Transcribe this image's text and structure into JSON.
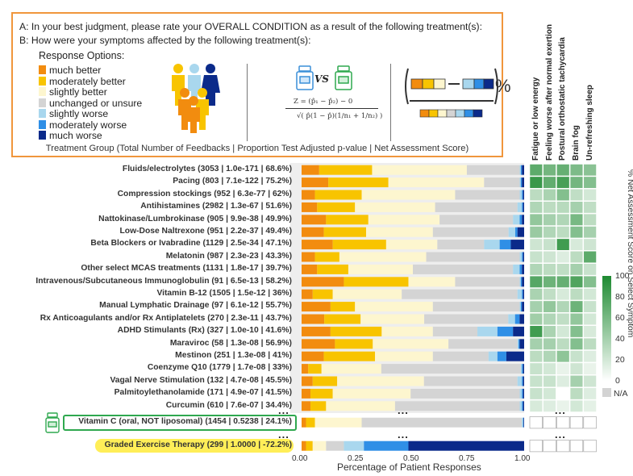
{
  "legend": {
    "question_a": "A: In your best judgment, please rate your OVERALL CONDITION as a result of the following treatment(s):",
    "question_b": "B: How were your symptoms affected by the following treatment(s):",
    "response_title": "Response Options:",
    "options": [
      {
        "label": "much better",
        "color": "#f28c0f"
      },
      {
        "label": "moderately better",
        "color": "#f8c400"
      },
      {
        "label": "slightly better",
        "color": "#fdf6cf"
      },
      {
        "label": "unchanged or unsure",
        "color": "#d4d4d4"
      },
      {
        "label": "slightly worse",
        "color": "#a9d7ee"
      },
      {
        "label": "moderately worse",
        "color": "#2f8fe6"
      },
      {
        "label": "much worse",
        "color": "#0b2a8a"
      }
    ],
    "formula_vs": "VS",
    "formula_z": "Z = (p̂₁ − p̂₂) − 0",
    "formula_den": "√( p̂(1 − p̂)(1/n₁ + 1/n₂) )",
    "net_percent": "%",
    "caption": "Treatment Group (Total Number of Feedbacks | Proportion Test Adjusted p-value | Net Assessment Score)"
  },
  "chart_data": {
    "type": "bar",
    "stacked": true,
    "orientation": "horizontal",
    "xlabel": "Percentage of Patient Responses",
    "xlim": [
      0,
      1
    ],
    "xticks": [
      "0.00",
      "0.25",
      "0.50",
      "0.75",
      "1.00"
    ],
    "response_categories": [
      "much better",
      "moderately better",
      "slightly better",
      "unchanged or unsure",
      "slightly worse",
      "moderately worse",
      "much worse"
    ],
    "rows": [
      {
        "label": "Fluids/electrolytes (3053 | 1.0e-171 | 68.6%)",
        "values": [
          0.08,
          0.24,
          0.43,
          0.24,
          0.005,
          0.005,
          0.01
        ],
        "heat": [
          72,
          62,
          68,
          58,
          52
        ]
      },
      {
        "label": "Pacing (803 | 7.1e-122 | 75.2%)",
        "values": [
          0.12,
          0.27,
          0.43,
          0.16,
          0.005,
          0.005,
          0.01
        ],
        "heat": [
          88,
          70,
          82,
          62,
          55
        ]
      },
      {
        "label": "Compression stockings (952 | 6.3e-77 | 62%)",
        "values": [
          0.06,
          0.21,
          0.42,
          0.29,
          0.01,
          0.005,
          0.005
        ],
        "heat": [
          30,
          38,
          55,
          28,
          20
        ]
      },
      {
        "label": "Antihistamines (2982 | 1.3e-67 | 51.6%)",
        "values": [
          0.07,
          0.17,
          0.36,
          0.37,
          0.02,
          0.005,
          0.005
        ],
        "heat": [
          35,
          30,
          32,
          40,
          28
        ]
      },
      {
        "label": "Nattokinase/Lumbrokinase (905 | 9.9e-38 | 49.9%)",
        "values": [
          0.11,
          0.19,
          0.32,
          0.33,
          0.03,
          0.01,
          0.01
        ],
        "heat": [
          48,
          40,
          35,
          60,
          30
        ]
      },
      {
        "label": "Low-Dose Naltrexone (951 | 2.2e-37 | 49.4%)",
        "values": [
          0.1,
          0.19,
          0.3,
          0.34,
          0.03,
          0.01,
          0.03
        ],
        "heat": [
          45,
          35,
          30,
          55,
          40
        ]
      },
      {
        "label": "Beta Blockers or Ivabradine (1129 | 2.5e-34 | 47.1%)",
        "values": [
          0.14,
          0.24,
          0.23,
          0.21,
          0.07,
          0.05,
          0.06
        ],
        "heat": [
          22,
          25,
          85,
          18,
          22
        ]
      },
      {
        "label": "Melatonin (987 | 2.3e-23 | 43.3%)",
        "values": [
          0.06,
          0.11,
          0.39,
          0.42,
          0.01,
          0.005,
          0.005
        ],
        "heat": [
          25,
          22,
          15,
          30,
          72
        ]
      },
      {
        "label": "Other select MCAS treatments (1131 | 1.8e-17 | 39.7%)",
        "values": [
          0.07,
          0.14,
          0.29,
          0.45,
          0.03,
          0.01,
          0.01
        ],
        "heat": [
          35,
          30,
          28,
          40,
          25
        ]
      },
      {
        "label": "Intravenous/Subcutaneous Immunoglobulin (91 | 6.5e-13 | 58.2%)",
        "values": [
          0.19,
          0.29,
          0.21,
          0.29,
          0.005,
          0.005,
          0.01
        ],
        "heat": [
          75,
          65,
          68,
          78,
          55
        ]
      },
      {
        "label": "Vitamin B-12 (1505 | 1.5e-12 | 36%)",
        "values": [
          0.05,
          0.09,
          0.31,
          0.52,
          0.02,
          0.005,
          0.005
        ],
        "heat": [
          38,
          28,
          18,
          30,
          20
        ]
      },
      {
        "label": "Manual Lymphatic Drainage (97 | 6.1e-12 | 55.7%)",
        "values": [
          0.13,
          0.11,
          0.35,
          0.39,
          0.005,
          0.005,
          0.01
        ],
        "heat": [
          40,
          48,
          35,
          65,
          25
        ]
      },
      {
        "label": "Rx Anticoagulants and/or Rx Antiplatelets (270 | 2.3e-11 | 43.7%)",
        "values": [
          0.1,
          0.16,
          0.28,
          0.37,
          0.03,
          0.02,
          0.02
        ],
        "heat": [
          42,
          35,
          28,
          48,
          20
        ]
      },
      {
        "label": "ADHD Stimulants (Rx) (327 | 1.0e-10 | 41.6%)",
        "values": [
          0.13,
          0.23,
          0.23,
          0.2,
          0.09,
          0.07,
          0.05
        ],
        "heat": [
          85,
          38,
          20,
          55,
          18
        ]
      },
      {
        "label": "Maraviroc (58 | 1.3e-08 | 56.9%)",
        "values": [
          0.15,
          0.17,
          0.34,
          0.31,
          0.005,
          0.005,
          0.02
        ],
        "heat": [
          40,
          40,
          30,
          55,
          30
        ]
      },
      {
        "label": "Mestinon (251 | 1.3e-08 | 41%)",
        "values": [
          0.1,
          0.23,
          0.26,
          0.25,
          0.04,
          0.04,
          0.08
        ],
        "heat": [
          30,
          35,
          50,
          25,
          15
        ]
      },
      {
        "label": "Coenzyme Q10 (1779 | 1.7e-08 | 33%)",
        "values": [
          0.03,
          0.06,
          0.27,
          0.63,
          0.005,
          0.005,
          0.005
        ],
        "heat": [
          25,
          20,
          10,
          22,
          10
        ]
      },
      {
        "label": "Vagal Nerve Stimulation (132 | 4.7e-08 | 45.5%)",
        "values": [
          0.05,
          0.11,
          0.39,
          0.42,
          0.02,
          0.005,
          0.005
        ],
        "heat": [
          25,
          25,
          15,
          40,
          22
        ]
      },
      {
        "label": "Palmitoylethanolamide (171 | 4.9e-07 | 41.5%)",
        "values": [
          0.04,
          0.1,
          0.35,
          0.49,
          0.01,
          0.005,
          0.005
        ],
        "heat": [
          25,
          20,
          0,
          30,
          15
        ]
      },
      {
        "label": "Curcumin (610 | 7.6e-07 | 34.4%)",
        "values": [
          0.04,
          0.07,
          0.31,
          0.56,
          0.01,
          0.005,
          0.005
        ],
        "heat": [
          18,
          15,
          10,
          20,
          12
        ]
      }
    ],
    "highlight_rows": [
      {
        "label": "Vitamin C (oral, NOT liposomal) (1454 | 0.5238 | 24.1%)",
        "values": [
          0.02,
          0.04,
          0.21,
          0.72,
          0.005,
          0.0025,
          0.0025
        ],
        "heat": [
          null,
          null,
          null,
          null,
          null
        ]
      },
      {
        "label": "Graded Exercise Therapy (299 | 1.0000 | -72.2%)",
        "values": [
          0.02,
          0.03,
          0.06,
          0.08,
          0.09,
          0.2,
          0.52
        ],
        "heat": [
          null,
          null,
          null,
          null,
          null
        ]
      }
    ],
    "ellipsis": "...",
    "heatmap": {
      "columns": [
        "Fatigue or low energy",
        "Feeling worse after normal exertion",
        "Postural orthostatic tachycardia",
        "Brain fog",
        "Un-refreshing sleep"
      ],
      "colorbar_title": "% Net Assessment Score on Select Symptom",
      "colorbar_ticks": [
        "100",
        "80",
        "60",
        "40",
        "20",
        "0"
      ],
      "na_label": "N/A",
      "color_low": "#ffffff",
      "color_high": "#1e8a31",
      "na_color": "#d3d3d3"
    }
  }
}
